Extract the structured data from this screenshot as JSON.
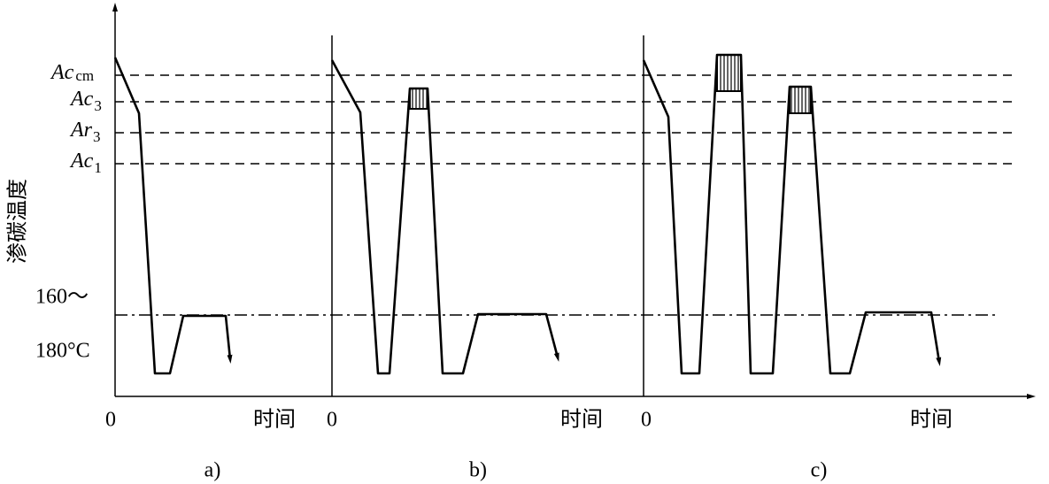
{
  "y_axis_label": "渗碳温度",
  "levels": [
    {
      "main": "Ac",
      "sub": "cm"
    },
    {
      "main": "Ac",
      "sub": "3"
    },
    {
      "main": "Ar",
      "sub": "3"
    },
    {
      "main": "Ac",
      "sub": "1"
    }
  ],
  "temperature_label": [
    "160～",
    "180°C"
  ],
  "panels": [
    {
      "origin": "0",
      "x_label": "时间",
      "caption": "a)"
    },
    {
      "origin": "0",
      "x_label": "时间",
      "caption": "b)"
    },
    {
      "origin": "0",
      "x_label": "时间",
      "caption": "c)"
    }
  ]
}
